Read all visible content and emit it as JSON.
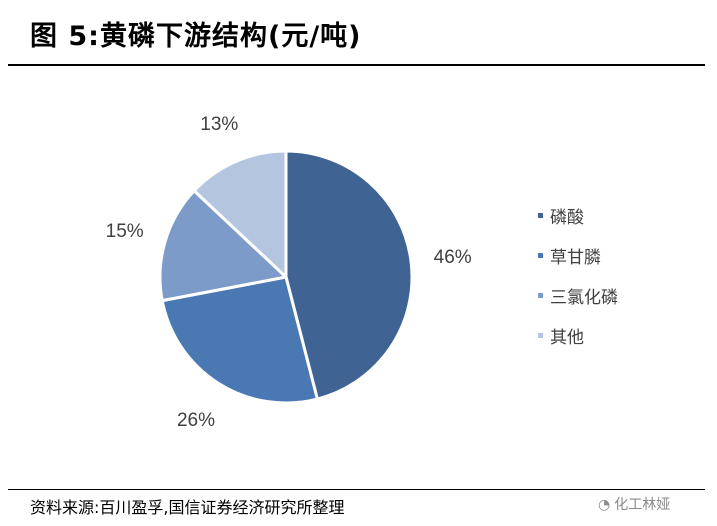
{
  "header": {
    "title": "图 5:黄磷下游结构(元/吨)"
  },
  "footer": {
    "source": "资料来源:百川盈孚,国信证券经济研究所整理",
    "watermark": "化工林娅"
  },
  "chart_data": {
    "type": "pie",
    "title": "",
    "slices": [
      {
        "name": "磷酸",
        "value": 46,
        "label": "46%",
        "color": "#3f6494"
      },
      {
        "name": "草甘膦",
        "value": 26,
        "label": "26%",
        "color": "#4a78b2"
      },
      {
        "name": "三氯化磷",
        "value": 15,
        "label": "15%",
        "color": "#7d9bc9"
      },
      {
        "name": "其他",
        "value": 13,
        "label": "13%",
        "color": "#b4c5e0"
      }
    ],
    "legend_position": "right"
  }
}
